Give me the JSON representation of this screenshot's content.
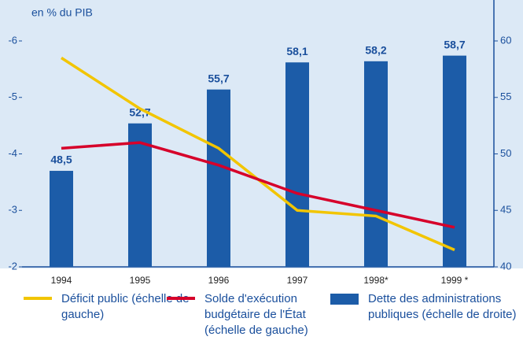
{
  "chart_data": {
    "type": "bar-line",
    "y_label": "en % du PIB",
    "categories": [
      "1994",
      "1995",
      "1996",
      "1997",
      "1998*",
      "1999 *"
    ],
    "ylim": [
      -2,
      -6
    ],
    "yticks": [
      -6,
      -5,
      -4,
      -3,
      -2
    ],
    "y2lim": [
      40,
      60
    ],
    "y2ticks": [
      40,
      45,
      50,
      55,
      60
    ],
    "series": [
      {
        "name": "Déficit public (échelle de gauche)",
        "type": "line",
        "color": "#f2c500",
        "values": [
          -5.7,
          -4.8,
          -4.1,
          -3.0,
          -2.9,
          -2.3
        ]
      },
      {
        "name": "Solde d'exécution budgétaire de l'État (échelle de gauche)",
        "type": "line",
        "color": "#d6002a",
        "values": [
          -4.1,
          -4.2,
          -3.8,
          -3.3,
          -3.0,
          -2.7
        ]
      },
      {
        "name": "Dette des administrations publiques (échelle de droite)",
        "type": "bar",
        "axis": "y2",
        "color": "#1c5ca8",
        "values": [
          48.5,
          52.7,
          55.7,
          58.1,
          58.2,
          58.7
        ],
        "value_labels": [
          "48,5",
          "52,7",
          "55,7",
          "58,1",
          "58,2",
          "58,7"
        ]
      }
    ]
  }
}
